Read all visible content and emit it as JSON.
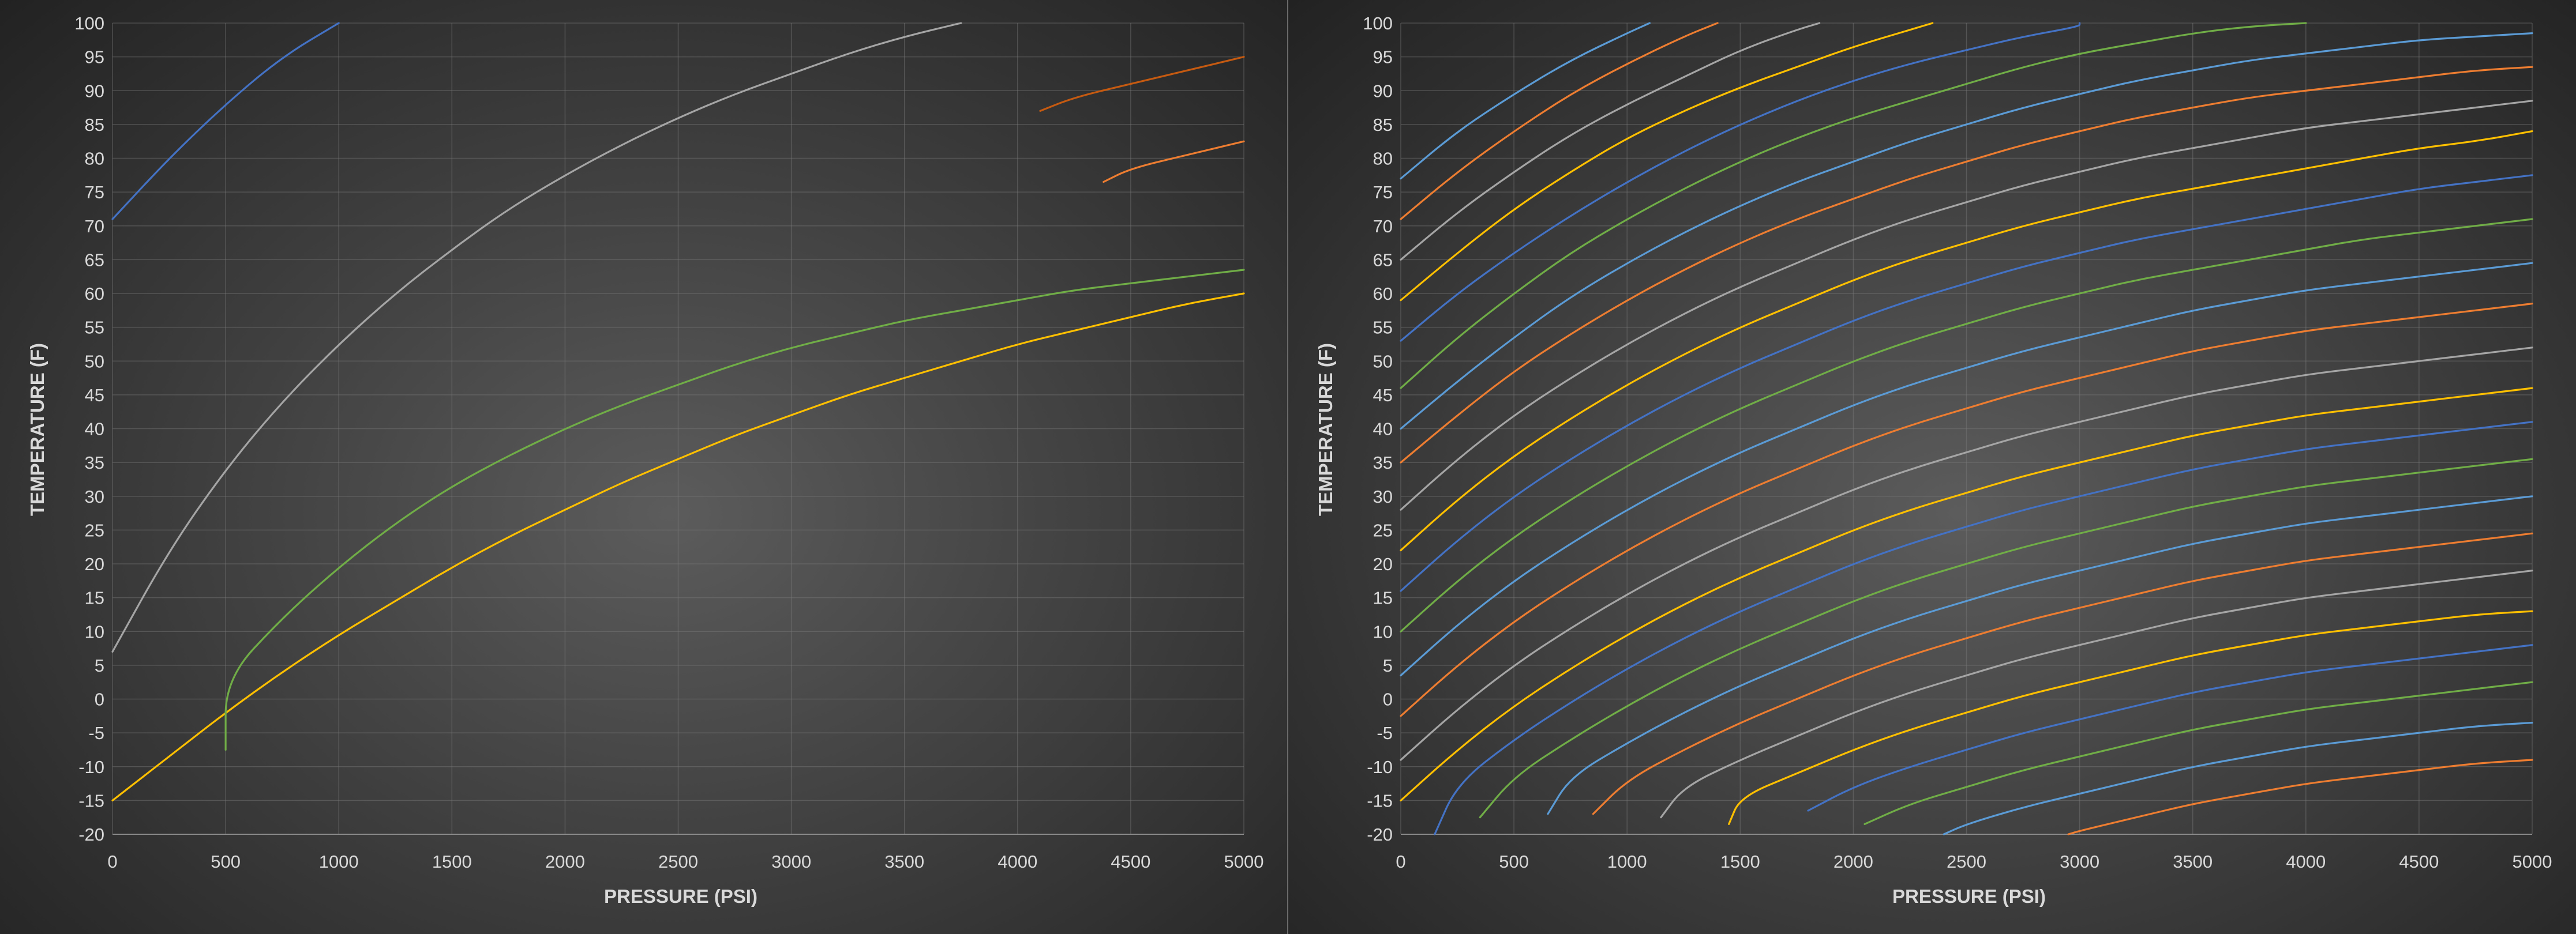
{
  "chart_data": [
    {
      "type": "line",
      "xlabel": "PRESSURE (PSI)",
      "ylabel": "TEMPERATURE (F)",
      "xlim": [
        0,
        5000
      ],
      "ylim": [
        -20,
        100
      ],
      "x_ticks": [
        "0",
        "500",
        "1000",
        "1500",
        "2000",
        "2500",
        "3000",
        "3500",
        "4000",
        "4500",
        "5000"
      ],
      "y_ticks": [
        "100",
        "95",
        "90",
        "85",
        "80",
        "75",
        "70",
        "65",
        "60",
        "55",
        "50",
        "45",
        "40",
        "35",
        "30",
        "25",
        "20",
        "15",
        "10",
        "5",
        "0",
        "-5",
        "-10",
        "-15",
        "-20"
      ],
      "grid": true,
      "legend": "none",
      "palette": [
        "#5b9bd5",
        "#ed7d31",
        "#a5a5a5",
        "#ffc000",
        "#4472c4",
        "#70ad47"
      ],
      "curve_x": [
        0,
        250,
        500,
        750,
        1000,
        1250,
        1500,
        1750,
        2000,
        2250,
        2500,
        2750,
        3000,
        3250,
        3500,
        3750,
        4000,
        4250,
        4500,
        4750,
        5000
      ],
      "series": [
        {
          "values": [
            -20.0,
            -7.0,
            5.0,
            16.0,
            26.0,
            35.0,
            43.0,
            50.0,
            56.0,
            61.0,
            66.0,
            70.0,
            74.0,
            78.0,
            81.0,
            84.0,
            87.0,
            89.0,
            91.0,
            93.0,
            95.0
          ],
          "shown_from": 4100,
          "color": "#c55a11"
        },
        {
          "values": [
            -20.0,
            -9.0,
            1.0,
            10.0,
            18.5,
            26.0,
            33.0,
            39.0,
            44.5,
            49.5,
            54.0,
            58.0,
            62.0,
            65.5,
            68.5,
            71.5,
            74.0,
            76.5,
            78.5,
            80.5,
            82.5
          ],
          "shown_from": 4380
        },
        {
          "values": [
            7.0,
            22.0,
            34.0,
            44.0,
            52.5,
            60.0,
            66.5,
            72.5,
            77.5,
            82.0,
            86.0,
            89.5,
            92.5,
            95.5,
            98.0,
            100.0
          ],
          "shown_until": 3750
        },
        {
          "values": [
            -15.0,
            -8.5,
            -2.0,
            4.0,
            9.5,
            14.5,
            19.5,
            24.0,
            28.0,
            32.0,
            35.5,
            39.0,
            42.0,
            45.0,
            47.5,
            50.0,
            52.5,
            54.5,
            56.5,
            58.5,
            60.0
          ]
        },
        {
          "values": [
            71.0,
            80.0,
            88.0,
            95.0,
            100.0
          ],
          "shown_until": 1000
        },
        {
          "values": [
            -20.0,
            -7.5,
            3.0,
            12.0,
            19.5,
            26.0,
            31.5,
            36.0,
            40.0,
            43.5,
            46.5,
            49.5,
            52.0,
            54.0,
            56.0,
            57.5,
            59.0,
            60.5,
            61.5,
            62.5,
            63.5
          ],
          "shown_from": 500
        }
      ]
    },
    {
      "type": "line",
      "xlabel": "PRESSURE (PSI)",
      "ylabel": "TEMPERATURE (F)",
      "xlim": [
        0,
        5000
      ],
      "ylim": [
        -20,
        100
      ],
      "x_ticks": [
        "0",
        "500",
        "1000",
        "1500",
        "2000",
        "2500",
        "3000",
        "3500",
        "4000",
        "4500",
        "5000"
      ],
      "y_ticks": [
        "100",
        "95",
        "90",
        "85",
        "80",
        "75",
        "70",
        "65",
        "60",
        "55",
        "50",
        "45",
        "40",
        "35",
        "30",
        "25",
        "20",
        "15",
        "10",
        "5",
        "0",
        "-5",
        "-10",
        "-15",
        "-20"
      ],
      "grid": true,
      "legend": "none",
      "palette": [
        "#5b9bd5",
        "#ed7d31",
        "#a5a5a5",
        "#ffc000",
        "#4472c4",
        "#70ad47"
      ],
      "curve_x": [
        0,
        250,
        500,
        750,
        1000,
        1250,
        1500,
        1750,
        2000,
        2250,
        2500,
        2750,
        3000,
        3250,
        3500,
        3750,
        4000,
        4250,
        4500,
        4750,
        5000
      ],
      "series": [
        {
          "values": [
            77.0,
            84.0,
            89.5,
            94.5,
            98.5,
            100.0
          ],
          "shown_until": 1100
        },
        {
          "values": [
            71.0,
            78.0,
            84.0,
            89.5,
            94.0,
            98.0,
            100.0
          ],
          "shown_until": 1400
        },
        {
          "values": [
            65.0,
            72.0,
            78.0,
            83.5,
            88.0,
            92.0,
            96.0,
            99.0,
            100.0
          ],
          "shown_until": 1850
        },
        {
          "values": [
            59.0,
            66.0,
            72.5,
            78.0,
            83.0,
            87.0,
            90.5,
            93.5,
            96.5,
            99.0,
            100.0
          ],
          "shown_until": 2350
        },
        {
          "values": [
            53.0,
            60.0,
            66.0,
            71.5,
            76.5,
            81.0,
            85.0,
            88.5,
            91.5,
            94.0,
            96.0,
            98.0,
            99.5,
            100.0
          ],
          "shown_until": 3000
        },
        {
          "values": [
            46.0,
            53.5,
            60.0,
            66.0,
            71.0,
            75.5,
            79.5,
            83.0,
            86.0,
            88.5,
            91.0,
            93.5,
            95.5,
            97.0,
            98.5,
            99.5,
            100.0
          ]
        },
        {
          "values": [
            40.0,
            47.0,
            53.5,
            59.5,
            64.5,
            69.0,
            73.0,
            76.5,
            79.5,
            82.5,
            85.0,
            87.5,
            89.5,
            91.5,
            93.0,
            94.5,
            95.5,
            96.5,
            97.5,
            98.0,
            98.5
          ]
        },
        {
          "values": [
            35.0,
            42.0,
            48.5,
            54.0,
            59.0,
            63.5,
            67.5,
            71.0,
            74.0,
            77.0,
            79.5,
            82.0,
            84.0,
            86.0,
            87.5,
            89.0,
            90.0,
            91.0,
            92.0,
            93.0,
            93.5
          ]
        },
        {
          "values": [
            28.0,
            35.5,
            42.0,
            47.5,
            52.5,
            57.0,
            61.0,
            64.5,
            68.0,
            71.0,
            73.5,
            76.0,
            78.0,
            80.0,
            81.5,
            83.0,
            84.5,
            85.5,
            86.5,
            87.5,
            88.5
          ]
        },
        {
          "values": [
            22.0,
            29.5,
            36.0,
            41.5,
            46.5,
            51.0,
            55.0,
            58.5,
            62.0,
            65.0,
            67.5,
            70.0,
            72.0,
            74.0,
            75.5,
            77.0,
            78.5,
            80.0,
            81.5,
            82.5,
            84.0
          ]
        },
        {
          "values": [
            16.0,
            23.5,
            30.0,
            35.5,
            40.5,
            45.0,
            49.0,
            52.5,
            56.0,
            59.0,
            61.5,
            64.0,
            66.0,
            68.0,
            69.5,
            71.0,
            72.5,
            74.0,
            75.5,
            76.5,
            77.5
          ]
        },
        {
          "values": [
            10.0,
            17.5,
            24.0,
            29.5,
            34.5,
            39.0,
            43.0,
            46.5,
            50.0,
            53.0,
            55.5,
            58.0,
            60.0,
            62.0,
            63.5,
            65.0,
            66.5,
            68.0,
            69.0,
            70.0,
            71.0
          ]
        },
        {
          "values": [
            3.5,
            11.0,
            17.5,
            23.0,
            28.0,
            32.5,
            36.5,
            40.0,
            43.5,
            46.5,
            49.0,
            51.5,
            53.5,
            55.5,
            57.5,
            59.0,
            60.5,
            61.5,
            62.5,
            63.5,
            64.5
          ]
        },
        {
          "values": [
            -2.5,
            5.0,
            11.5,
            17.0,
            22.0,
            26.5,
            30.5,
            34.0,
            37.5,
            40.5,
            43.0,
            45.5,
            47.5,
            49.5,
            51.5,
            53.0,
            54.5,
            55.5,
            56.5,
            57.5,
            58.5
          ]
        },
        {
          "values": [
            -9.0,
            -1.5,
            5.0,
            10.5,
            15.5,
            20.0,
            24.0,
            27.5,
            31.0,
            34.0,
            36.5,
            39.0,
            41.0,
            43.0,
            45.0,
            46.5,
            48.0,
            49.0,
            50.0,
            51.0,
            52.0
          ]
        },
        {
          "values": [
            -15.0,
            -7.5,
            -1.0,
            4.5,
            9.5,
            14.0,
            18.0,
            21.5,
            25.0,
            28.0,
            30.5,
            33.0,
            35.0,
            37.0,
            39.0,
            40.5,
            42.0,
            43.0,
            44.0,
            45.0,
            46.0
          ]
        },
        {
          "values": [
            -20.0,
            -12.5,
            -6.0,
            -0.5,
            4.5,
            9.0,
            13.0,
            16.5,
            20.0,
            23.0,
            25.5,
            28.0,
            30.0,
            32.0,
            34.0,
            35.5,
            37.0,
            38.0,
            39.0,
            40.0,
            41.0
          ],
          "shown_from": 150
        },
        {
          "values": [
            -20.0,
            -17.5,
            -11.5,
            -6.0,
            -1.0,
            3.5,
            7.5,
            11.0,
            14.5,
            17.5,
            20.0,
            22.5,
            24.5,
            26.5,
            28.5,
            30.0,
            31.5,
            32.5,
            33.5,
            34.5,
            35.5
          ],
          "shown_from": 350
        },
        {
          "values": [
            -20.0,
            -20.0,
            -17.0,
            -11.5,
            -6.5,
            -2.0,
            2.0,
            5.5,
            9.0,
            12.0,
            14.5,
            17.0,
            19.0,
            21.0,
            23.0,
            24.5,
            26.0,
            27.0,
            28.0,
            29.0,
            30.0
          ],
          "shown_from": 650
        },
        {
          "values": [
            -20.0,
            -20.0,
            -20.0,
            -17.0,
            -12.0,
            -7.5,
            -3.5,
            0.0,
            3.5,
            6.5,
            9.0,
            11.5,
            13.5,
            15.5,
            17.5,
            19.0,
            20.5,
            21.5,
            22.5,
            23.5,
            24.5
          ],
          "shown_from": 850
        },
        {
          "values": [
            -20.0,
            -20.0,
            -20.0,
            -20.0,
            -17.5,
            -13.0,
            -9.0,
            -5.5,
            -2.0,
            1.0,
            3.5,
            6.0,
            8.0,
            10.0,
            12.0,
            13.5,
            15.0,
            16.0,
            17.0,
            18.0,
            19.0
          ],
          "shown_from": 1150
        },
        {
          "values": [
            -20.0,
            -20.0,
            -20.0,
            -20.0,
            -20.0,
            -18.5,
            -14.5,
            -11.0,
            -7.5,
            -4.5,
            -2.0,
            0.5,
            2.5,
            4.5,
            6.5,
            8.0,
            9.5,
            10.5,
            11.5,
            12.5,
            13.0
          ],
          "shown_from": 1450
        },
        {
          "values": [
            -20.0,
            -20.0,
            -20.0,
            -20.0,
            -20.0,
            -20.0,
            -20.0,
            -16.5,
            -13.0,
            -10.0,
            -7.5,
            -5.0,
            -3.0,
            -1.0,
            1.0,
            2.5,
            4.0,
            5.0,
            6.0,
            7.0,
            8.0
          ],
          "shown_from": 1800
        },
        {
          "values": [
            -20.0,
            -20.0,
            -20.0,
            -20.0,
            -20.0,
            -20.0,
            -20.0,
            -20.0,
            -18.5,
            -15.5,
            -13.0,
            -10.5,
            -8.5,
            -6.5,
            -4.5,
            -3.0,
            -1.5,
            -0.5,
            0.5,
            1.5,
            2.5
          ],
          "shown_from": 2050
        },
        {
          "values": [
            -20.0,
            -20.0,
            -20.0,
            -20.0,
            -20.0,
            -20.0,
            -20.0,
            -20.0,
            -20.0,
            -20.0,
            -18.5,
            -16.0,
            -14.0,
            -12.0,
            -10.0,
            -8.5,
            -7.0,
            -6.0,
            -5.0,
            -4.0,
            -3.5
          ],
          "shown_from": 2400
        },
        {
          "values": [
            -20.0,
            -20.0,
            -20.0,
            -20.0,
            -20.0,
            -20.0,
            -20.0,
            -20.0,
            -20.0,
            -20.0,
            -20.0,
            -20.0,
            -19.5,
            -17.5,
            -15.5,
            -14.0,
            -12.5,
            -11.5,
            -10.5,
            -9.5,
            -9.0
          ],
          "shown_from": 2950
        }
      ]
    }
  ]
}
